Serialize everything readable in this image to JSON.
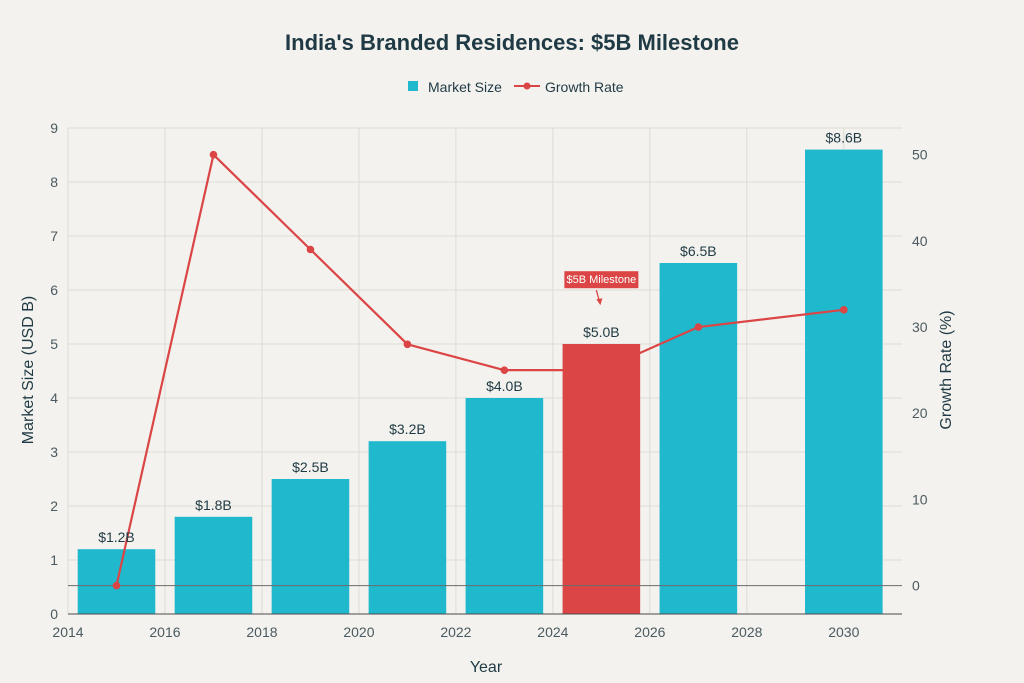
{
  "chart_data": {
    "type": "bar",
    "title": "India's Branded Residences: $5B Milestone",
    "xlabel": "Year",
    "ylabel": "Market Size (USD B)",
    "y2label": "Growth Rate (%)",
    "xlim": [
      2014,
      2031.2
    ],
    "ylim": [
      0,
      9
    ],
    "y2lim": [
      -3.3,
      53.1
    ],
    "x_ticks": [
      "2014",
      "2016",
      "2018",
      "2020",
      "2022",
      "2024",
      "2026",
      "2028",
      "2030"
    ],
    "y_ticks": [
      "0",
      "1",
      "2",
      "3",
      "4",
      "5",
      "6",
      "7",
      "8",
      "9"
    ],
    "y2_ticks": [
      "0",
      "10",
      "20",
      "30",
      "40",
      "50"
    ],
    "grid": true,
    "legend_position": "top-center",
    "colors": {
      "market_size": "#1fb8cd",
      "highlight": "#db4545",
      "growth_rate": "#db4545"
    },
    "series": [
      {
        "name": "Market Size",
        "type": "bar",
        "axis": "left",
        "x": [
          2015,
          2017,
          2019,
          2021,
          2023,
          2025,
          2027,
          2030
        ],
        "values": [
          1.2,
          1.8,
          2.5,
          3.2,
          4.0,
          5.0,
          6.5,
          8.6
        ],
        "labels": [
          "$1.2B",
          "$1.8B",
          "$2.5B",
          "$3.2B",
          "$4.0B",
          "$5.0B",
          "$6.5B",
          "$8.6B"
        ],
        "highlight_x": 2025
      },
      {
        "name": "Growth Rate",
        "type": "line",
        "axis": "right",
        "x": [
          2015,
          2017,
          2019,
          2021,
          2023,
          2025,
          2027,
          2030
        ],
        "values": [
          0,
          50,
          39,
          28,
          25,
          25,
          30,
          32
        ]
      }
    ],
    "annotation": {
      "text": "$5B Milestone",
      "x": 2025,
      "y": 6.2
    }
  }
}
